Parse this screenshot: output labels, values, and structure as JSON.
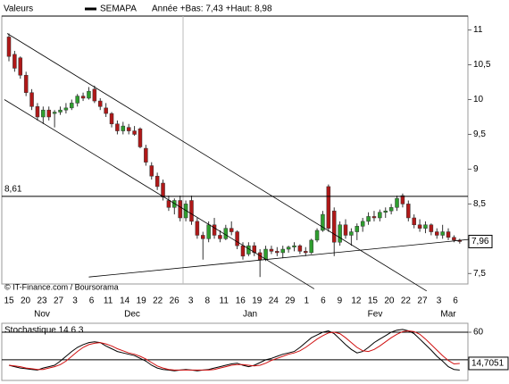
{
  "chart_data": [
    {
      "type": "candlestick",
      "header": "Valeurs",
      "title": "SEMAPA",
      "subtitle": "Année +Bas: 7,43 +Haut: 8,98",
      "legend_color": "#000000",
      "annotation": "© IT-Finance.com / Boursorama",
      "x_labels": [
        "15",
        "20",
        "23",
        "27",
        "3",
        "6",
        "11",
        "14",
        "19",
        "22",
        "26",
        "3",
        "8",
        "11",
        "16",
        "19",
        "24",
        "29",
        "1",
        "6",
        "9",
        "12",
        "15",
        "20",
        "22",
        "27",
        "3",
        "6"
      ],
      "month_labels": [
        "Nov",
        "Dec",
        "Jan",
        "Fev",
        "Mar"
      ],
      "up_color": "#2e9e2e",
      "down_color": "#b01818",
      "open": [
        10.9,
        10.65,
        10.6,
        10.35,
        10.1,
        9.9,
        9.75,
        9.85,
        9.8,
        9.82,
        9.85,
        9.88,
        9.95,
        10.05,
        10.02,
        10.15,
        9.98,
        9.88,
        9.8,
        9.65,
        9.55,
        9.6,
        9.55,
        9.58,
        9.3,
        9.05,
        8.9,
        8.8,
        8.55,
        8.45,
        8.55,
        8.3,
        8.55,
        8.25,
        8.05,
        8.0,
        8.2,
        8.05,
        8.0,
        8.15,
        8.1,
        7.9,
        7.78,
        7.9,
        7.8,
        7.7,
        7.85,
        7.82,
        7.8,
        7.85,
        7.88,
        7.9,
        7.82,
        7.8,
        7.98,
        8.12,
        8.75,
        8.4,
        7.95,
        8.2,
        8.05,
        8.1,
        8.18,
        8.25,
        8.32,
        8.3,
        8.38,
        8.4,
        8.45,
        8.62,
        8.5,
        8.3,
        8.2,
        8.15,
        8.2,
        8.1,
        8.05,
        8.1,
        8.02,
        7.98
      ],
      "high": [
        10.95,
        10.7,
        10.62,
        10.4,
        10.15,
        9.95,
        9.9,
        9.9,
        9.85,
        9.9,
        9.95,
        10.0,
        10.08,
        10.1,
        10.18,
        10.2,
        10.02,
        9.95,
        9.82,
        9.7,
        9.68,
        9.65,
        9.62,
        9.6,
        9.35,
        9.1,
        8.95,
        8.85,
        8.62,
        8.58,
        8.62,
        8.55,
        8.62,
        8.3,
        8.1,
        8.25,
        8.3,
        8.12,
        8.2,
        8.25,
        8.12,
        7.95,
        7.95,
        7.95,
        7.85,
        7.9,
        7.9,
        7.88,
        7.9,
        7.9,
        7.95,
        7.92,
        7.88,
        8.0,
        8.15,
        8.4,
        8.78,
        8.45,
        8.25,
        8.28,
        8.15,
        8.22,
        8.3,
        8.38,
        8.4,
        8.42,
        8.45,
        8.5,
        8.62,
        8.65,
        8.55,
        8.35,
        8.28,
        8.25,
        8.22,
        8.15,
        8.2,
        8.15,
        8.05,
        8.0
      ],
      "low": [
        10.55,
        10.4,
        10.3,
        10.05,
        9.85,
        9.7,
        9.65,
        9.7,
        9.6,
        9.78,
        9.8,
        9.85,
        9.9,
        9.98,
        10.0,
        9.95,
        9.85,
        9.75,
        9.6,
        9.5,
        9.5,
        9.5,
        9.48,
        9.3,
        9.05,
        8.85,
        8.7,
        8.55,
        8.4,
        8.35,
        8.25,
        8.25,
        8.2,
        8.0,
        7.7,
        7.95,
        8.0,
        7.95,
        7.98,
        8.05,
        7.85,
        7.7,
        7.75,
        7.75,
        7.45,
        7.68,
        7.78,
        7.75,
        7.72,
        7.8,
        7.82,
        7.78,
        7.75,
        7.78,
        7.95,
        8.1,
        8.1,
        7.75,
        7.9,
        8.0,
        7.9,
        7.98,
        8.1,
        8.2,
        8.25,
        8.25,
        8.3,
        8.35,
        8.4,
        8.45,
        8.25,
        8.15,
        8.1,
        8.08,
        8.05,
        8.0,
        8.0,
        7.98,
        7.95,
        7.93
      ],
      "close": [
        10.62,
        10.45,
        10.35,
        10.1,
        9.9,
        9.75,
        9.85,
        9.75,
        9.82,
        9.85,
        9.88,
        9.95,
        10.05,
        10.02,
        10.12,
        9.98,
        9.9,
        9.8,
        9.65,
        9.55,
        9.62,
        9.55,
        9.5,
        9.32,
        9.1,
        8.9,
        8.75,
        8.6,
        8.45,
        8.55,
        8.3,
        8.5,
        8.25,
        8.05,
        8.0,
        8.2,
        8.05,
        8.0,
        8.15,
        8.1,
        7.9,
        7.75,
        7.9,
        7.8,
        7.7,
        7.85,
        7.82,
        7.8,
        7.85,
        7.88,
        7.9,
        7.82,
        7.8,
        7.98,
        8.12,
        8.35,
        8.15,
        7.95,
        8.2,
        8.05,
        8.1,
        8.18,
        8.25,
        8.32,
        8.3,
        8.38,
        8.4,
        8.45,
        8.58,
        8.5,
        8.3,
        8.2,
        8.15,
        8.2,
        8.1,
        8.05,
        8.1,
        8.02,
        7.98,
        7.96
      ],
      "ylim": [
        7.35,
        11.2
      ],
      "yticks": [
        {
          "value": 7.5,
          "label": "7,5"
        },
        8,
        {
          "value": 8.5,
          "label": "8,5"
        },
        9,
        {
          "value": 9.5,
          "label": "9,5"
        },
        10,
        {
          "value": 10.5,
          "label": "10,5"
        },
        11
      ],
      "reference_line": {
        "value": 8.61,
        "label": "8,61"
      },
      "last": {
        "value": 7.96,
        "label": "7,96"
      },
      "trendlines": [
        [
          [
            -0.3,
            10.95
          ],
          [
            73.2,
            7.25
          ]
        ],
        [
          [
            -0.8,
            10.0
          ],
          [
            53.5,
            7.28
          ]
        ],
        [
          [
            14,
            7.45
          ],
          [
            80.6,
            7.99
          ]
        ]
      ]
    },
    {
      "type": "line",
      "title": "Stochastique 14 6 3",
      "series": [
        {
          "color": "#000000",
          "values": [
            12,
            10,
            8,
            7,
            6,
            5,
            8,
            10,
            12,
            18,
            25,
            32,
            38,
            42,
            45,
            46,
            45,
            40,
            36,
            32,
            30,
            28,
            26,
            22,
            18,
            12,
            8,
            6,
            5,
            4,
            5,
            6,
            5,
            4,
            5,
            6,
            8,
            10,
            12,
            14,
            15,
            12,
            10,
            12,
            16,
            20,
            22,
            25,
            28,
            30,
            32,
            38,
            45,
            52,
            56,
            60,
            62,
            58,
            50,
            42,
            35,
            30,
            32,
            38,
            45,
            50,
            55,
            60,
            63,
            64,
            62,
            58,
            50,
            42,
            34,
            25,
            18,
            10,
            6,
            5
          ]
        },
        {
          "color": "#d01010",
          "values": [
            12,
            11,
            10,
            8,
            7,
            6,
            6,
            8,
            10,
            13,
            18,
            25,
            32,
            38,
            42,
            44,
            45,
            43,
            40,
            36,
            33,
            30,
            28,
            25,
            21,
            16,
            11,
            8,
            6,
            5,
            5,
            5,
            5,
            5,
            5,
            5,
            6,
            8,
            10,
            12,
            13,
            13,
            12,
            11,
            12,
            15,
            19,
            22,
            25,
            28,
            30,
            33,
            38,
            44,
            50,
            55,
            59,
            60,
            58,
            52,
            45,
            38,
            33,
            32,
            35,
            40,
            46,
            52,
            57,
            61,
            62,
            61,
            57,
            50,
            42,
            34,
            26,
            19,
            14,
            14.7051
          ]
        }
      ],
      "ylim": [
        -10,
        73
      ],
      "yticks": [
        60
      ],
      "levels": [
        20,
        60
      ],
      "last": {
        "value": 14.7051,
        "label": "14,7051"
      }
    }
  ]
}
